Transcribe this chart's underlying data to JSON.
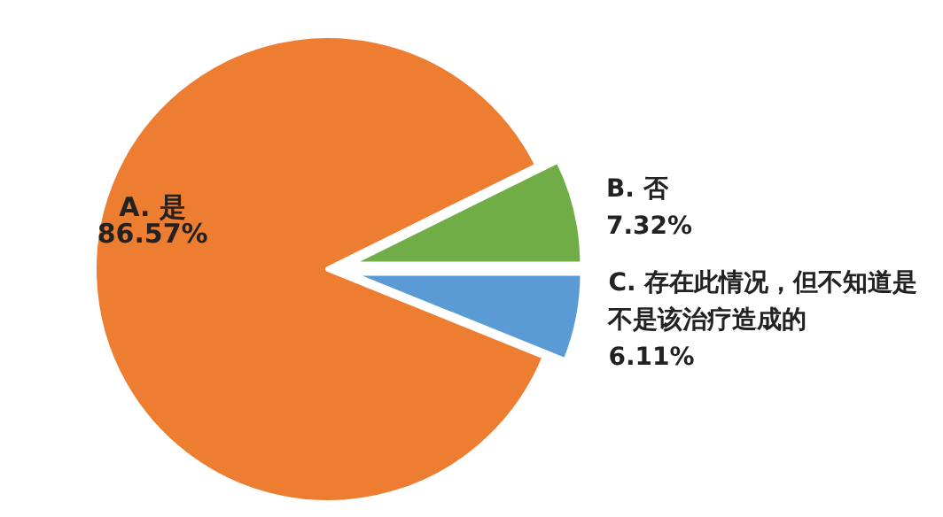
{
  "chart_data": {
    "type": "pie",
    "categories": [
      "A. 是",
      "B. 否",
      "C. 存在此情况，但不知道是不是该治疗造成的"
    ],
    "values": [
      86.57,
      7.32,
      6.11
    ],
    "colors": [
      "#ed7d31",
      "#70ad47",
      "#5b9bd5"
    ],
    "value_labels": [
      "86.57%",
      "7.32%",
      "6.11%"
    ],
    "legend": false
  }
}
